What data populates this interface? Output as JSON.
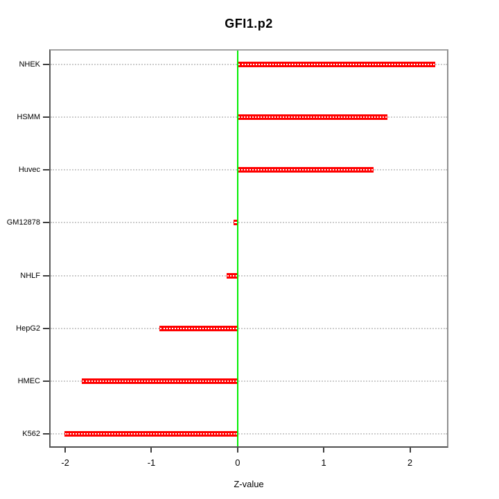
{
  "chart_data": {
    "type": "bar",
    "orientation": "horizontal",
    "title": "GFI1.p2",
    "xlabel": "Z-value",
    "categories": [
      "NHEK",
      "HSMM",
      "Huvec",
      "GM12878",
      "NHLF",
      "HepG2",
      "HMEC",
      "K562"
    ],
    "values": [
      2.29,
      1.74,
      1.58,
      -0.05,
      -0.13,
      -0.91,
      -1.81,
      -2.01
    ],
    "xlim": [
      -2.17,
      2.43
    ],
    "xticks": [
      -2,
      -1,
      0,
      1,
      2
    ],
    "grid": "dotted horizontal line per category, full plot width",
    "zero_reference_line": 0,
    "legend": "none",
    "colors": {
      "bar": "#ff0000",
      "bar_dot": "#ffffff",
      "zero_line": "#00ee00",
      "gridline": "#cccccc",
      "tick": "#3d3d3d",
      "text": "#000000",
      "background": "#ffffff"
    }
  }
}
